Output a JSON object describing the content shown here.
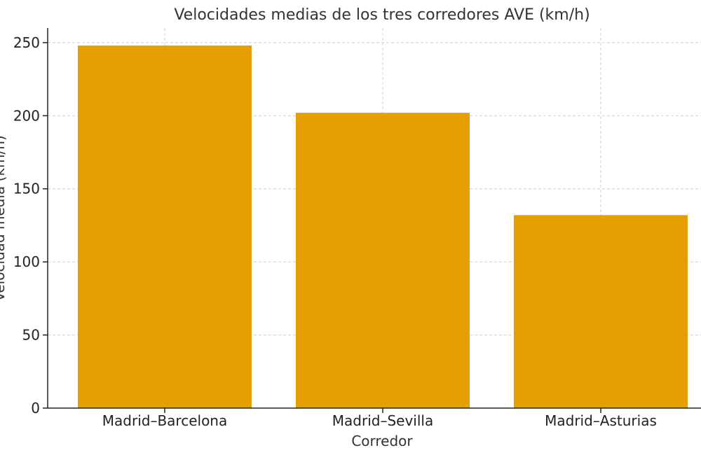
{
  "chart_data": {
    "type": "bar",
    "title": "Velocidades medias de los tres corredores AVE (km/h)",
    "xlabel": "Corredor",
    "ylabel": "Velocidad media (km/h)",
    "categories": [
      "Madrid–Barcelona",
      "Madrid–Sevilla",
      "Madrid–Asturias"
    ],
    "values": [
      248,
      202,
      132
    ],
    "ylim": [
      0,
      260
    ],
    "yticks": [
      0,
      50,
      100,
      150,
      200,
      250
    ],
    "grid": true,
    "bar_color": "#E69F00"
  }
}
